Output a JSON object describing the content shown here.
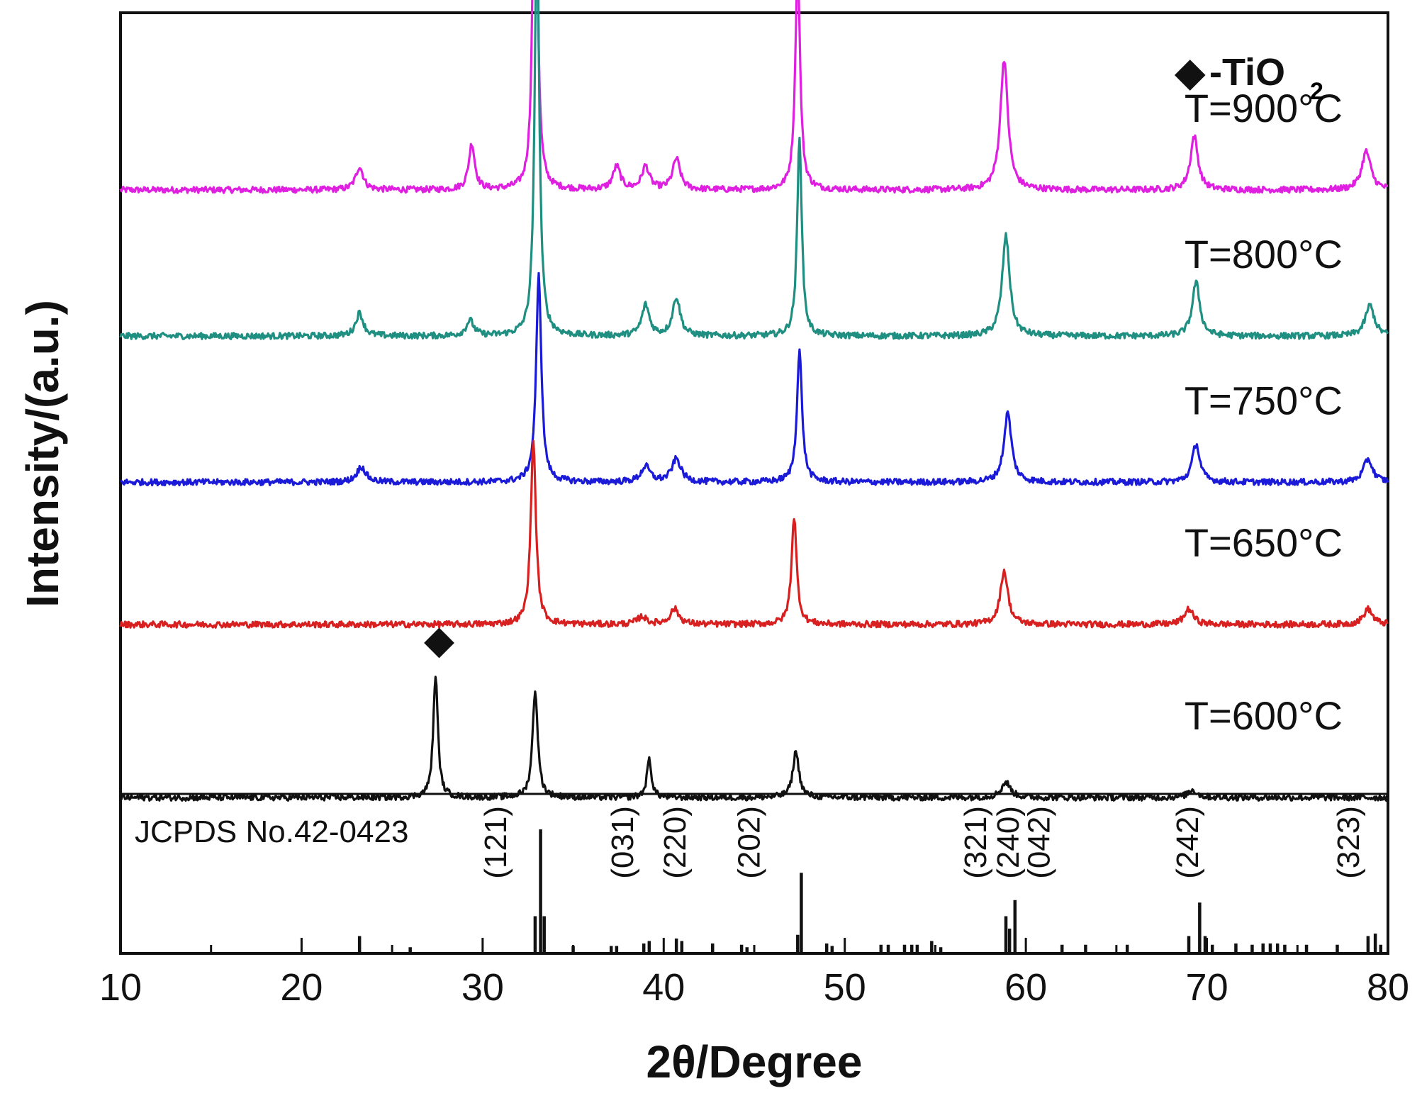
{
  "chart_data": {
    "type": "line",
    "xlabel": "2θ/Degree",
    "ylabel": "Intensity/(a.u.)",
    "xlim": [
      10,
      80
    ],
    "xticks": [
      "10",
      "20",
      "30",
      "40",
      "50",
      "60",
      "70",
      "80"
    ],
    "legend": {
      "marker": "◆",
      "text": "-TiO",
      "subscript": "2",
      "position": "top-right"
    },
    "series": [
      {
        "name": "T=900°C",
        "color": "#e020e0",
        "baseline": 0.73,
        "peaks": [
          [
            23.2,
            0.03,
            0.25
          ],
          [
            29.4,
            0.06,
            0.2
          ],
          [
            32.9,
            0.62,
            0.13
          ],
          [
            37.4,
            0.03,
            0.25
          ],
          [
            39.0,
            0.03,
            0.25
          ],
          [
            40.7,
            0.04,
            0.25
          ],
          [
            47.4,
            0.29,
            0.16
          ],
          [
            58.8,
            0.17,
            0.25
          ],
          [
            69.3,
            0.07,
            0.25
          ],
          [
            78.8,
            0.05,
            0.3
          ]
        ]
      },
      {
        "name": "T=800°C",
        "color": "#1f8f82",
        "baseline": 0.54,
        "peaks": [
          [
            23.2,
            0.03,
            0.25
          ],
          [
            29.3,
            0.02,
            0.25
          ],
          [
            33.0,
            0.54,
            0.15
          ],
          [
            39.0,
            0.04,
            0.25
          ],
          [
            40.7,
            0.05,
            0.25
          ],
          [
            47.5,
            0.26,
            0.15
          ],
          [
            58.9,
            0.13,
            0.25
          ],
          [
            69.4,
            0.07,
            0.25
          ],
          [
            79.0,
            0.04,
            0.3
          ]
        ]
      },
      {
        "name": "T=750°C",
        "color": "#1a1ad8",
        "baseline": 0.35,
        "peaks": [
          [
            23.3,
            0.02,
            0.3
          ],
          [
            33.1,
            0.27,
            0.17
          ],
          [
            39.0,
            0.02,
            0.3
          ],
          [
            40.7,
            0.03,
            0.3
          ],
          [
            47.5,
            0.17,
            0.17
          ],
          [
            59.0,
            0.09,
            0.25
          ],
          [
            69.4,
            0.05,
            0.25
          ],
          [
            78.9,
            0.03,
            0.3
          ]
        ]
      },
      {
        "name": "T=650°C",
        "color": "#d82020",
        "baseline": 0.165,
        "peaks": [
          [
            32.8,
            0.24,
            0.17
          ],
          [
            38.8,
            0.01,
            0.3
          ],
          [
            40.6,
            0.02,
            0.3
          ],
          [
            47.2,
            0.14,
            0.17
          ],
          [
            58.8,
            0.07,
            0.25
          ],
          [
            69.0,
            0.02,
            0.3
          ],
          [
            78.9,
            0.02,
            0.3
          ]
        ]
      },
      {
        "name": "T=600°C",
        "color": "#111111",
        "baseline": -0.06,
        "peaks": [
          [
            27.4,
            0.16,
            0.15
          ],
          [
            32.9,
            0.14,
            0.17
          ],
          [
            39.2,
            0.05,
            0.15
          ],
          [
            47.3,
            0.06,
            0.2
          ],
          [
            58.9,
            0.02,
            0.3
          ],
          [
            69.2,
            0.01,
            0.3
          ]
        ]
      }
    ],
    "tio2_marker": {
      "x": 27.6,
      "symbol": "◆"
    },
    "reference": {
      "name": "JCPDS No.42-0423",
      "lines": [
        [
          23.2,
          0.14
        ],
        [
          26.0,
          0.05
        ],
        [
          32.9,
          0.3
        ],
        [
          33.2,
          1.0
        ],
        [
          33.4,
          0.3
        ],
        [
          35.0,
          0.06
        ],
        [
          37.1,
          0.06
        ],
        [
          37.4,
          0.06
        ],
        [
          38.9,
          0.08
        ],
        [
          39.2,
          0.1
        ],
        [
          40.7,
          0.12
        ],
        [
          41.0,
          0.1
        ],
        [
          42.7,
          0.08
        ],
        [
          44.3,
          0.07
        ],
        [
          44.6,
          0.05
        ],
        [
          47.6,
          0.65
        ],
        [
          47.4,
          0.15
        ],
        [
          49.0,
          0.08
        ],
        [
          49.3,
          0.06
        ],
        [
          52.0,
          0.07
        ],
        [
          52.4,
          0.07
        ],
        [
          53.3,
          0.07
        ],
        [
          53.7,
          0.07
        ],
        [
          54.0,
          0.07
        ],
        [
          54.8,
          0.1
        ],
        [
          55.3,
          0.05
        ],
        [
          58.9,
          0.3
        ],
        [
          59.1,
          0.2
        ],
        [
          59.4,
          0.43
        ],
        [
          62.0,
          0.07
        ],
        [
          63.3,
          0.07
        ],
        [
          65.6,
          0.07
        ],
        [
          69.0,
          0.14
        ],
        [
          69.6,
          0.41
        ],
        [
          69.9,
          0.14
        ],
        [
          70.3,
          0.07
        ],
        [
          71.6,
          0.08
        ],
        [
          72.5,
          0.07
        ],
        [
          73.1,
          0.08
        ],
        [
          73.5,
          0.08
        ],
        [
          73.9,
          0.08
        ],
        [
          74.3,
          0.07
        ],
        [
          75.5,
          0.07
        ],
        [
          77.2,
          0.07
        ],
        [
          78.9,
          0.14
        ],
        [
          79.3,
          0.16
        ],
        [
          79.6,
          0.07
        ]
      ],
      "hkl": [
        {
          "label": "(121)",
          "x": 31.3
        },
        {
          "label": "(031)",
          "x": 38.3
        },
        {
          "label": "(220)",
          "x": 41.2
        },
        {
          "label": "(202)",
          "x": 45.3
        },
        {
          "label": "(321)",
          "x": 57.8
        },
        {
          "label": "(240)",
          "x": 59.6
        },
        {
          "label": "(042)",
          "x": 61.3
        },
        {
          "label": "(242)",
          "x": 69.5
        },
        {
          "label": "(323)",
          "x": 78.4
        }
      ]
    }
  }
}
